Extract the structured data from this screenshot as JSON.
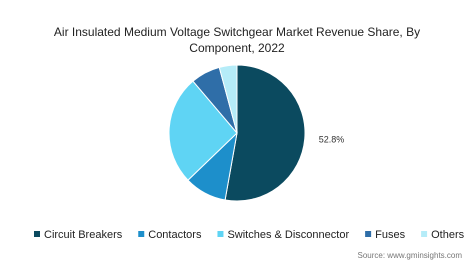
{
  "chart_data": {
    "type": "pie",
    "title": "Air Insulated Medium Voltage Switchgear Market Revenue Share, By Component, 2022",
    "categories": [
      "Circuit Breakers",
      "Contactors",
      "Switches & Disconnector",
      "Fuses",
      "Others"
    ],
    "values": [
      52.8,
      10,
      26,
      7,
      4.2
    ],
    "value_labels": [
      "52.8%",
      null,
      null,
      null,
      null
    ],
    "colors": [
      "#0b4a5f",
      "#1d8fcb",
      "#5fd4f4",
      "#2f6ea8",
      "#b5ecf8"
    ],
    "legend": "bottom",
    "source": "Source: www.gminsights.com"
  }
}
